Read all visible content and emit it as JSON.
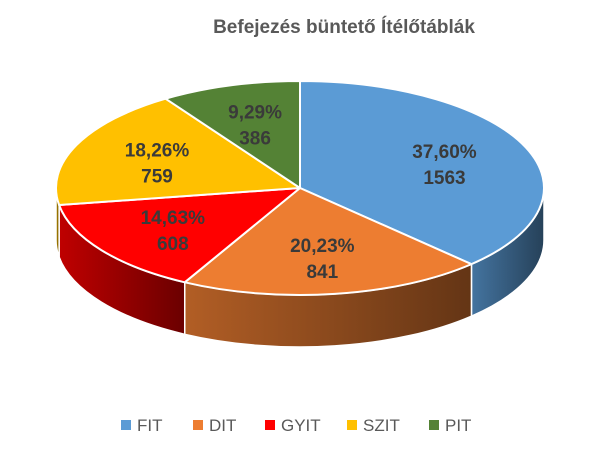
{
  "chart_data": {
    "type": "pie",
    "title": "Befejezés büntető Ítélőtáblák",
    "categories": [
      "FIT",
      "DIT",
      "GYIT",
      "SZIT",
      "PIT"
    ],
    "values": [
      1563,
      841,
      608,
      759,
      386
    ],
    "percent_labels": [
      "37,60%",
      "20,23%",
      "14,63%",
      "18,26%",
      "9,29%"
    ],
    "value_labels": [
      "1563",
      "841",
      "608",
      "759",
      "386"
    ],
    "colors": [
      "#5B9BD5",
      "#ED7D31",
      "#FF0000",
      "#FFC000",
      "#548235"
    ],
    "legend_position": "bottom",
    "style": "3d"
  }
}
